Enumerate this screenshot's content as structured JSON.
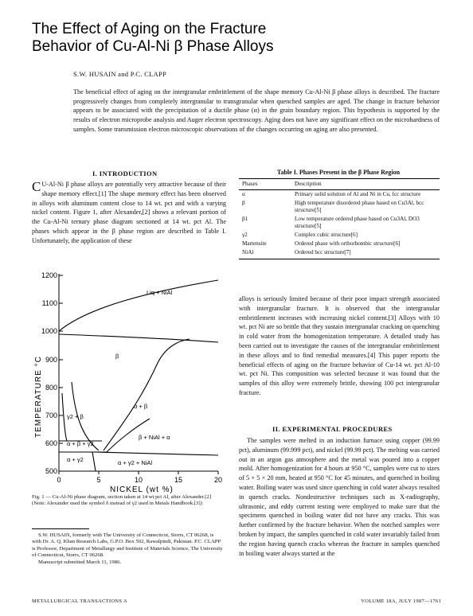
{
  "title_line1": "The Effect of Aging on the Fracture",
  "title_line2": "Behavior of Cu-Al-Ni β Phase Alloys",
  "authors": "S.W. HUSAIN and P.C. CLAPP",
  "abstract": "The beneficial effect of aging on the intergranular embrittlement of the shape memory Cu-Al-Ni β phase alloys is described. The fracture progressively changes from completely intergranular to transgranular when quenched samples are aged. The change in fracture behavior appears to be associated with the precipitation of a ductile phase (α) in the grain boundary region. This hypothesis is supported by the results of electron microprobe analysis and Auger electron spectroscopy. Aging does not have any significant effect on the microhardness of samples. Some transmission electron microscopic observations of the changes occurring on aging are also presented.",
  "sections": {
    "intro": "I.   INTRODUCTION",
    "exp": "II.   EXPERIMENTAL PROCEDURES"
  },
  "intro_dropcap": "C",
  "intro_text": "U-Al-Ni β phase alloys are potentially very attractive because of their shape memory effect.[1] The shape memory effect has been observed in alloys with aluminum content close to 14 wt. pct and with a varying nickel content. Figure 1, after Alexander,[2] shows a relevant portion of the Cu-Al-Ni ternary phase diagram sectioned at 14 wt. pct Al. The phases which appear in the β phase region are described in Table I. Unfortunately, the application of these",
  "right_para1": "alloys is seriously limited because of their poor impact strength associated with intergranular fracture. It is observed that the intergranular embrittlement increases with increasing nickel content.[3] Alloys with 10 wt. pct Ni are so brittle that they sustain intergranular cracking on quenching in cold water from the homogenization temperature. A detailed study has been carried out to investigate the causes of the intergranular embrittlement in these alloys and to find remedial measures.[4] This paper reports the beneficial effects of aging on the fracture behavior of Cu-14 wt. pct Al-10 wt. pct Ni. This composition was selected because it was found that the samples of this alloy were extremely brittle, showing 100 pct intergranular fracture.",
  "right_para2": "The samples were melted in an induction furnace using copper (99.99 pct), aluminum (99.999 pct), and nickel (99.99 pct). The melting was carried out in an argon gas atmosphere and the metal was poured into a copper mold. After homogenization for 4 hours at 950 °C, samples were cut to sizes of 5 × 5 × 20 mm, heated at 950 °C for 45 minutes, and quenched in boiling water. Boiling water was used since quenching in cold water always resulted in quench cracks. Nondestructive techniques such as X-radiography, ultrasonic, and eddy current testing were employed to make sure that the specimens quenched in boiling water did not have any cracks. This was further confirmed by the fracture behavior. When the notched samples were broken by impact, the samples quenched in cold water invariably failed from the region having quench cracks whereas the fracture in samples quenched in boiling water always started at the",
  "table": {
    "caption": "Table I.   Phases Present in the β Phase Region",
    "headers": [
      "Phases",
      "Description"
    ],
    "rows": [
      {
        "phase": "α",
        "desc": "Primary solid solution of Al and Ni in Cu, fcc structure"
      },
      {
        "phase": "β",
        "desc": "High temperature disordered phase based on Cu3Al, bcc structure[5]"
      },
      {
        "phase": "β1",
        "desc": "Low temperature ordered phase based on Cu3Al, DO3 structure[5]"
      },
      {
        "phase": "γ2",
        "desc": "Complex cubic structure[6]"
      },
      {
        "phase": "Martensite",
        "desc": "Ordered phase with orthorhombic structure[6]"
      },
      {
        "phase": "NiAl",
        "desc": "Ordered bcc structure[7]"
      }
    ]
  },
  "figure": {
    "ylabel": "TEMPERATURE °C",
    "xlabel": "NICKEL  (wt %)",
    "yticks": [
      "1200",
      "1100",
      "1000",
      "900",
      "800",
      "700",
      "600",
      "500"
    ],
    "xticks": [
      "0",
      "5",
      "10",
      "15",
      "20"
    ],
    "regions": {
      "liq": "Liq + NiAl",
      "beta": "β",
      "alpha_beta": "α + β",
      "gamma_beta": "γ2 + β",
      "beta_nial_alpha": "β + NiAl + α",
      "abg": "α + β + γ2",
      "ag": "α + γ2",
      "agn": "α + γ2 + NiAl"
    }
  },
  "fig_caption": "Fig. 1 — Cu-Al-Ni phase diagram, section taken at 14 wt pct Al, after Alexander.[2] (Note: Alexander used the symbol δ instead of γ2 used in Metals Handbook.[3])",
  "footnote_affil": "S.W. HUSAIN, formerly with The University of Connecticut, Storrs, CT 06268, is with Dr. A. Q. Khan Research Labs, G.P.O. Box 502, Rawalpindi, Pakistan. P.C. CLAPP is Professor, Department of Metallurgy and Institute of Materials Science, The University of Connecticut, Storrs, CT 06268.",
  "footnote_date": "Manuscript submitted March 11, 1986.",
  "running_left": "METALLURGICAL TRANSACTIONS A",
  "running_right": "VOLUME 18A, JULY 1987—1761"
}
